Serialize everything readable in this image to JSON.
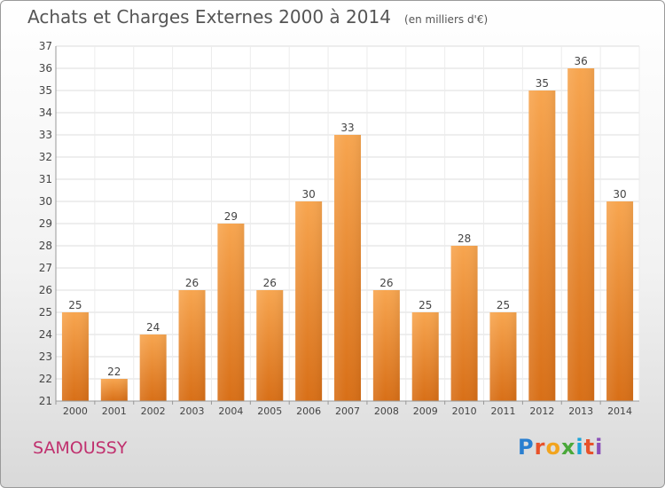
{
  "title": "Achats et Charges Externes 2000 à 2014",
  "unit_note": "(en milliers d'€)",
  "location": "SAMOUSSY",
  "logo": {
    "text": "Proxiti",
    "letters": [
      "P",
      "r",
      "o",
      "x",
      "i",
      "t",
      "i"
    ]
  },
  "colors": {
    "bar_light": "#f7a54f",
    "bar_dark": "#d86f17",
    "title": "#555555",
    "location": "#c0306e"
  },
  "chart_data": {
    "type": "bar",
    "categories": [
      "2000",
      "2001",
      "2002",
      "2003",
      "2004",
      "2005",
      "2006",
      "2007",
      "2008",
      "2009",
      "2010",
      "2011",
      "2012",
      "2013",
      "2014"
    ],
    "values": [
      25,
      22,
      24,
      26,
      29,
      26,
      30,
      33,
      26,
      25,
      28,
      25,
      35,
      36,
      30
    ],
    "data_labels": [
      "25",
      "22",
      "24",
      "26",
      "29",
      "26",
      "30",
      "33",
      "26",
      "25",
      "28",
      "25",
      "35",
      "36",
      "30"
    ],
    "yticks": [
      "21",
      "22",
      "23",
      "24",
      "25",
      "26",
      "27",
      "28",
      "29",
      "30",
      "31",
      "32",
      "33",
      "34",
      "35",
      "36",
      "37"
    ],
    "ylim": [
      21,
      37
    ],
    "grid": true,
    "legend": "none"
  }
}
